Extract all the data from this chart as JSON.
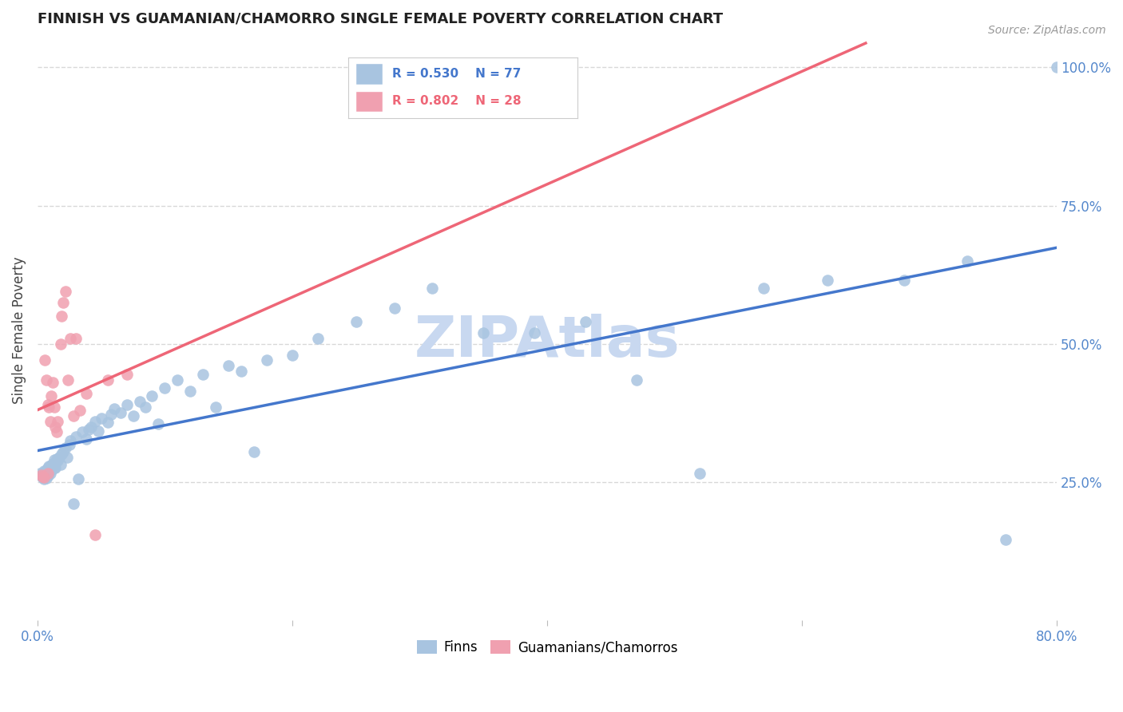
{
  "title": "FINNISH VS GUAMANIAN/CHAMORRO SINGLE FEMALE POVERTY CORRELATION CHART",
  "source": "Source: ZipAtlas.com",
  "ylabel": "Single Female Poverty",
  "xlim": [
    0.0,
    0.8
  ],
  "ylim": [
    0.0,
    1.05
  ],
  "ytick_labels_right": [
    "100.0%",
    "75.0%",
    "50.0%",
    "25.0%"
  ],
  "ytick_vals_right": [
    1.0,
    0.75,
    0.5,
    0.25
  ],
  "grid_color": "#d8d8d8",
  "background_color": "#ffffff",
  "finns_color": "#a8c4e0",
  "guam_color": "#f0a0b0",
  "trendline_finn_color": "#4477cc",
  "trendline_guam_color": "#ee6677",
  "watermark_color": "#c8d8f0",
  "finn_r": 0.53,
  "guam_r": 0.802,
  "finn_n": 77,
  "guam_n": 28,
  "finns_x": [
    0.002,
    0.003,
    0.004,
    0.005,
    0.005,
    0.006,
    0.006,
    0.007,
    0.007,
    0.008,
    0.008,
    0.009,
    0.009,
    0.01,
    0.01,
    0.011,
    0.011,
    0.012,
    0.013,
    0.013,
    0.014,
    0.014,
    0.015,
    0.016,
    0.017,
    0.018,
    0.019,
    0.02,
    0.022,
    0.023,
    0.025,
    0.026,
    0.028,
    0.03,
    0.032,
    0.035,
    0.038,
    0.04,
    0.042,
    0.045,
    0.048,
    0.05,
    0.055,
    0.058,
    0.06,
    0.065,
    0.07,
    0.075,
    0.08,
    0.085,
    0.09,
    0.095,
    0.1,
    0.11,
    0.12,
    0.13,
    0.14,
    0.15,
    0.16,
    0.17,
    0.18,
    0.2,
    0.22,
    0.25,
    0.28,
    0.31,
    0.35,
    0.39,
    0.43,
    0.47,
    0.52,
    0.57,
    0.62,
    0.68,
    0.73,
    0.76,
    0.8
  ],
  "finns_y": [
    0.265,
    0.262,
    0.258,
    0.27,
    0.255,
    0.268,
    0.26,
    0.272,
    0.257,
    0.275,
    0.261,
    0.278,
    0.267,
    0.273,
    0.265,
    0.28,
    0.271,
    0.283,
    0.276,
    0.29,
    0.285,
    0.275,
    0.292,
    0.288,
    0.295,
    0.282,
    0.3,
    0.305,
    0.312,
    0.295,
    0.318,
    0.325,
    0.21,
    0.332,
    0.255,
    0.34,
    0.328,
    0.345,
    0.35,
    0.36,
    0.342,
    0.365,
    0.358,
    0.372,
    0.382,
    0.375,
    0.39,
    0.37,
    0.395,
    0.385,
    0.405,
    0.355,
    0.42,
    0.435,
    0.415,
    0.445,
    0.385,
    0.46,
    0.45,
    0.305,
    0.47,
    0.48,
    0.51,
    0.54,
    0.565,
    0.6,
    0.52,
    0.52,
    0.54,
    0.435,
    0.265,
    0.6,
    0.615,
    0.615,
    0.65,
    0.145,
    1.0
  ],
  "guam_x": [
    0.003,
    0.004,
    0.005,
    0.006,
    0.007,
    0.008,
    0.008,
    0.009,
    0.01,
    0.011,
    0.012,
    0.013,
    0.014,
    0.015,
    0.016,
    0.018,
    0.019,
    0.02,
    0.022,
    0.024,
    0.026,
    0.028,
    0.03,
    0.033,
    0.038,
    0.045,
    0.055,
    0.07
  ],
  "guam_y": [
    0.262,
    0.26,
    0.258,
    0.47,
    0.435,
    0.265,
    0.39,
    0.385,
    0.36,
    0.405,
    0.43,
    0.385,
    0.35,
    0.34,
    0.36,
    0.5,
    0.55,
    0.575,
    0.595,
    0.435,
    0.51,
    0.37,
    0.51,
    0.38,
    0.41,
    0.155,
    0.435,
    0.445
  ]
}
